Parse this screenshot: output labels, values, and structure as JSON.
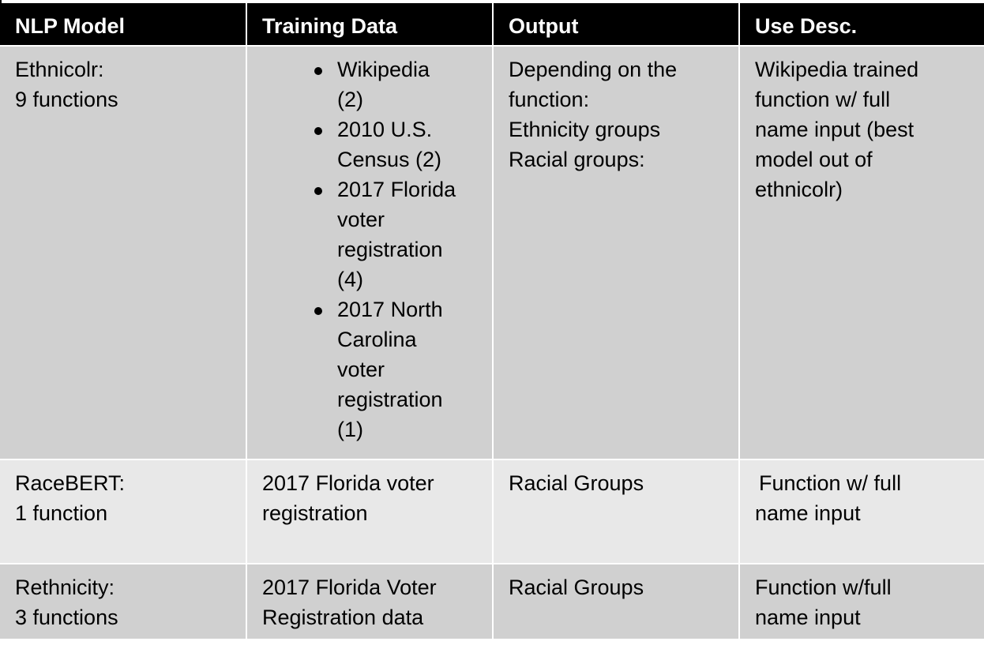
{
  "table": {
    "headers": [
      "NLP Model",
      "Training Data",
      "Output",
      "Use Desc."
    ],
    "rows": [
      {
        "model": [
          "Ethnicolr:",
          "9 functions"
        ],
        "training_bullets": [
          [
            "Wikipedia",
            "(2)"
          ],
          [
            "2010 U.S.",
            "Census (2)"
          ],
          [
            "2017 Florida",
            "voter",
            "registration",
            "(4)"
          ],
          [
            "2017 North",
            "Carolina",
            "voter",
            "registration",
            "(1)"
          ]
        ],
        "output": [
          "Depending on the",
          "function:",
          "Ethnicity groups",
          "Racial groups:"
        ],
        "use": [
          "Wikipedia trained",
          "function w/ full",
          "name input (best",
          "model out of",
          "ethnicolr)"
        ]
      },
      {
        "model": [
          "RaceBERT:",
          "1 function"
        ],
        "training": [
          "2017 Florida voter",
          "registration"
        ],
        "output": [
          "Racial Groups"
        ],
        "use": [
          "Function w/ full",
          "name input"
        ]
      },
      {
        "model": [
          "Rethnicity:",
          "3 functions"
        ],
        "training": [
          "2017 Florida Voter",
          "Registration data"
        ],
        "output": [
          "Racial Groups"
        ],
        "use": [
          "Function w/full",
          "name input"
        ]
      }
    ]
  }
}
